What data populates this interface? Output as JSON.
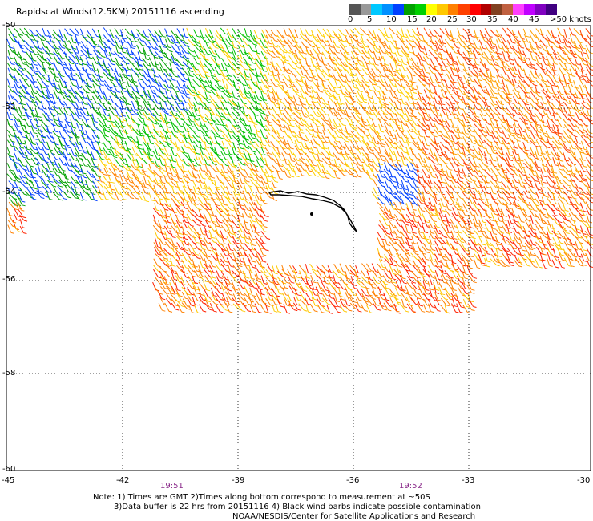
{
  "title": "Rapidscat Winds(12.5KM) 20151116 ascending",
  "scale": {
    "colors": [
      "#555555",
      "#999999",
      "#00c8ff",
      "#0090ff",
      "#0040ff",
      "#00a000",
      "#00d000",
      "#ffff00",
      "#ffc800",
      "#ff8000",
      "#ff4000",
      "#ff0000",
      "#b00000",
      "#804020",
      "#c06040",
      "#ff40ff",
      "#c000ff",
      "#8000c0",
      "#400080"
    ],
    "labels": [
      "0",
      "5",
      "10",
      "15",
      "20",
      "25",
      "30",
      "35",
      "40",
      "45",
      ">50 knots"
    ]
  },
  "map": {
    "lat_labels": [
      "-50",
      "-52",
      "-54",
      "-56",
      "-58",
      "-60"
    ],
    "lon_labels": [
      "-45",
      "-42",
      "-39",
      "-36",
      "-33",
      "-30"
    ],
    "lat_range": [
      -60,
      -50
    ],
    "lon_range": [
      -45,
      -30
    ]
  },
  "times": [
    "19:51",
    "19:52"
  ],
  "notes": {
    "line1": "Note: 1) Times are GMT 2)Times along bottom correspond to measurement at ~50S",
    "line2": "3)Data buffer is 22 hrs from 20151116 4) Black wind barbs indicate possible contamination",
    "line3": "NOAA/NESDIS/Center for Satellite Applications and Research"
  }
}
